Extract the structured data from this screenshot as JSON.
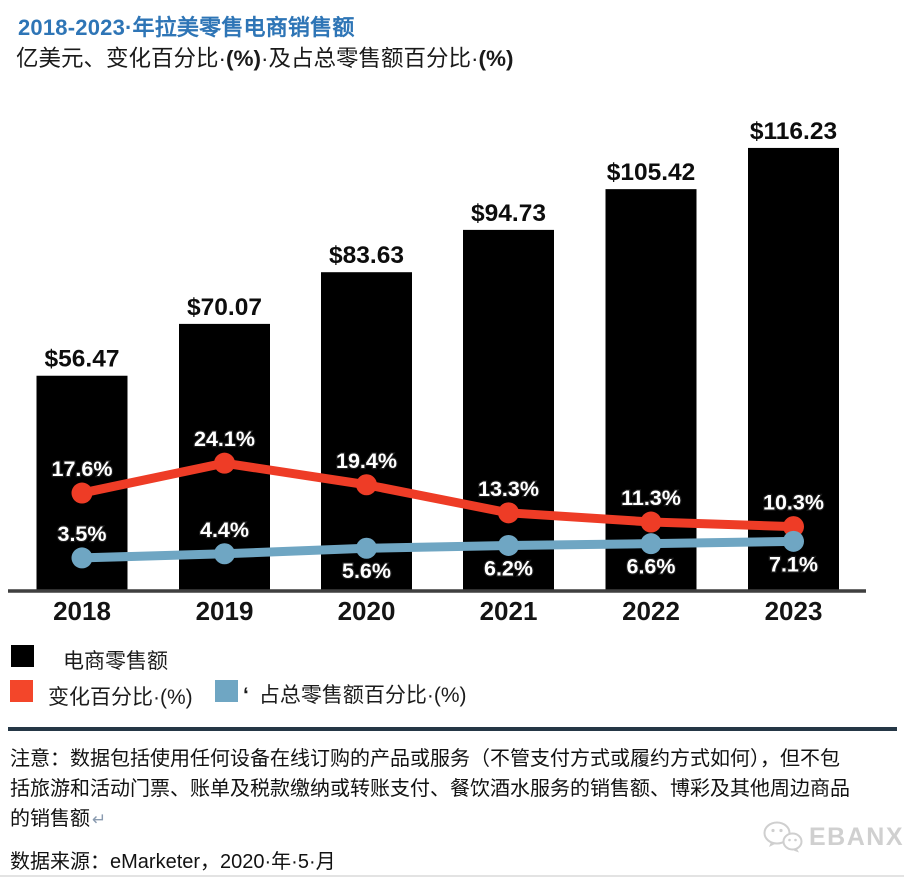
{
  "header": {
    "title": "2018-2023·年拉美零售电商销售额",
    "subtitle_parts": [
      "亿美元、变化百分比·",
      "(%)",
      "·及占总零售额百分比·",
      "(%)"
    ]
  },
  "chart_data": {
    "type": "bar+line",
    "title": "2018-2023 年拉美零售电商销售额",
    "subtitle": "亿美元、变化百分比 (%) 及占总零售额百分比 (%)",
    "categories": [
      "2018",
      "2019",
      "2020",
      "2021",
      "2022",
      "2023"
    ],
    "bar_series": {
      "name": "电商零售额",
      "unit": "亿美元",
      "values": [
        56.47,
        70.07,
        83.63,
        94.73,
        105.42,
        116.23
      ],
      "value_labels": [
        "$56.47",
        "$70.07",
        "$83.63",
        "$94.73",
        "$105.42",
        "$116.23"
      ],
      "color": "#000000"
    },
    "line_series": [
      {
        "name": "变化百分比 (%)",
        "values": [
          17.6,
          24.1,
          19.4,
          13.3,
          11.3,
          10.3
        ],
        "labels": [
          "17.6%",
          "24.1%",
          "19.4%",
          "13.3%",
          "11.3%",
          "10.3%"
        ],
        "label_side": [
          "above",
          "above",
          "above",
          "above",
          "above",
          "above"
        ],
        "color": "#ee3c26"
      },
      {
        "name": "占总零售额百分比 (%)",
        "values": [
          3.5,
          4.4,
          5.6,
          6.2,
          6.6,
          7.1
        ],
        "labels": [
          "3.5%",
          "4.4%",
          "5.6%",
          "6.2%",
          "6.6%",
          "7.1%"
        ],
        "label_side": [
          "above",
          "above",
          "below",
          "below",
          "below",
          "below"
        ],
        "color": "#6fa6c3"
      }
    ],
    "layout_hints": {
      "value_axis_ticks": "none (data labels shown on chart)",
      "grid": "off",
      "baseline_axis": "x-axis line visible",
      "legend_position": "bottom-left"
    }
  },
  "legend": {
    "items": [
      {
        "label": "电商零售额",
        "color": "#000000"
      },
      {
        "label": "变化百分比·(%)",
        "color": "#f3462a"
      },
      {
        "label": "占总零售额百分比·(%)",
        "color": "#6fa6c3",
        "prefix_mark": "‘"
      }
    ]
  },
  "note": {
    "lines": [
      "注意：数据包括使用任何设备在线订购的产品或服务（不管支付方式或履约方式如何），但不包",
      "括旅游和活动门票、账单及税款缴纳或转账支付、餐饮酒水服务的销售额、博彩及其他周边商品",
      "的销售额"
    ],
    "return_mark": "↵"
  },
  "source": {
    "text": "数据来源：eMarketer，2020·年·5·月"
  },
  "watermark": {
    "brand": "EBANX",
    "icon": "wechat-bubbles-icon"
  }
}
